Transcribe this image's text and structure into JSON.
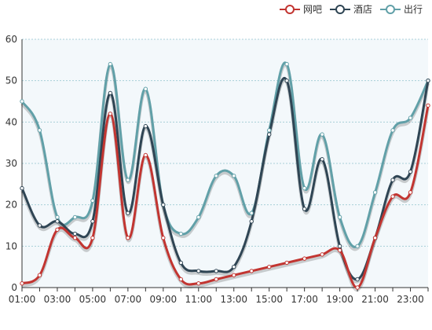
{
  "chart_data": {
    "type": "line",
    "legend_position": "top-right",
    "grid": true,
    "x": [
      "01:00",
      "02:00",
      "03:00",
      "04:00",
      "05:00",
      "06:00",
      "07:00",
      "08:00",
      "09:00",
      "10:00",
      "11:00",
      "12:00",
      "13:00",
      "14:00",
      "15:00",
      "16:00",
      "17:00",
      "18:00",
      "19:00",
      "20:00",
      "21:00",
      "22:00",
      "23:00",
      "24:00"
    ],
    "x_tick_labels": [
      "01:00",
      "03:00",
      "05:00",
      "07:00",
      "09:00",
      "11:00",
      "13:00",
      "15:00",
      "17:00",
      "19:00",
      "21:00",
      "23:00"
    ],
    "ylim": [
      0,
      60
    ],
    "y_ticks": [
      0,
      10,
      20,
      30,
      40,
      50,
      60
    ],
    "series": [
      {
        "name": "网吧",
        "color": "#c23531",
        "values": [
          1,
          3,
          14,
          12,
          12,
          42,
          12,
          32,
          12,
          2,
          1,
          2,
          3,
          4,
          5,
          6,
          7,
          8,
          9,
          0,
          12,
          22,
          23,
          44
        ]
      },
      {
        "name": "酒店",
        "color": "#2f4554",
        "values": [
          24,
          15,
          16,
          13,
          16,
          47,
          18,
          39,
          20,
          6,
          4,
          4,
          5,
          16,
          37,
          50,
          19,
          31,
          10,
          2,
          12,
          26,
          28,
          50
        ]
      },
      {
        "name": "出行",
        "color": "#61a0a8",
        "values": [
          45,
          38,
          17,
          17,
          21,
          54,
          26,
          48,
          20,
          13,
          17,
          27,
          27,
          18,
          38,
          54,
          24,
          37,
          17,
          10,
          23,
          38,
          41,
          50
        ]
      }
    ]
  }
}
